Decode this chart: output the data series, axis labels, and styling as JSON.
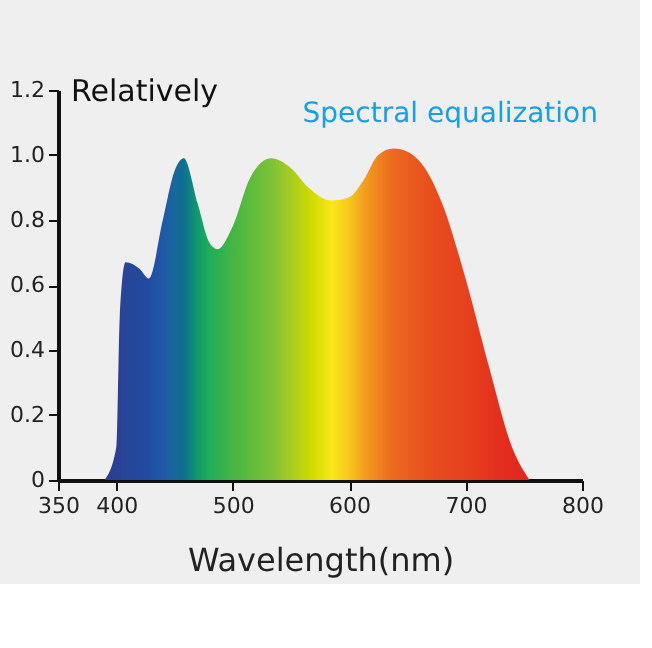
{
  "chart_data": {
    "type": "area",
    "xlabel": "Wavelength(nm)",
    "ylabel": "Relatively",
    "annotations": [
      "Spectral equalization"
    ],
    "xlim": [
      350,
      800
    ],
    "xticks": [
      350,
      400,
      500,
      600,
      700,
      800
    ],
    "ylim": [
      0,
      1.2
    ],
    "yticks": [
      {
        "value": 0,
        "label": "0"
      },
      0.2,
      0.4,
      0.6,
      0.8,
      {
        "value": 1.0,
        "label": "1.0"
      },
      1.2
    ],
    "grid": false,
    "series": [
      {
        "x": [
          390,
          400,
          403,
          408,
          420,
          428,
          440,
          450,
          458,
          470,
          480,
          487,
          500,
          515,
          533,
          550,
          565,
          585,
          600,
          612,
          625,
          638,
          650,
          665,
          680,
          700,
          720,
          740,
          755
        ],
        "values": [
          0,
          0.1,
          0.5,
          0.67,
          0.65,
          0.62,
          0.8,
          0.95,
          0.99,
          0.85,
          0.73,
          0.71,
          0.78,
          0.93,
          0.99,
          0.96,
          0.9,
          0.86,
          0.87,
          0.92,
          1.0,
          1.02,
          1.01,
          0.96,
          0.85,
          0.62,
          0.35,
          0.1,
          0
        ],
        "colors": [
          "#2a3f8f",
          "#2a4092",
          "#2a4296",
          "#284599",
          "#23489c",
          "#214ca0",
          "#1f5aa8",
          "#17679e",
          "#0e6f8f",
          "#139a6c",
          "#1fae5a",
          "#2cb150",
          "#45b544",
          "#5dbb3c",
          "#7cc236",
          "#a6cc22",
          "#cbd800",
          "#f8e81a",
          "#f6c81c",
          "#f5a01e",
          "#f0841e",
          "#ec6a1e",
          "#ea5e1e",
          "#e8521e",
          "#e7481e",
          "#e6421e",
          "#e4341e",
          "#e32a1e",
          "#e3261e"
        ]
      }
    ]
  }
}
